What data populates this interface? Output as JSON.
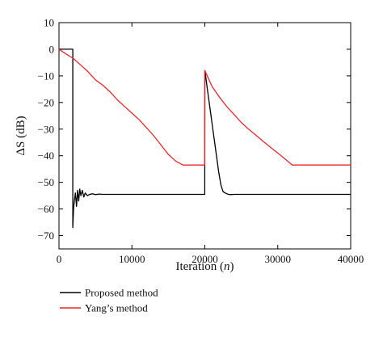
{
  "chart_data": {
    "type": "line",
    "title": "",
    "xlabel": "Iteration (n)",
    "xlabel_parts": {
      "text": "Iteration (",
      "var": "n",
      "close": ")"
    },
    "ylabel": "ΔS (dB)",
    "xlim": [
      0,
      40000
    ],
    "ylim": [
      -75,
      10
    ],
    "xticks": [
      0,
      10000,
      20000,
      30000,
      40000
    ],
    "yticks": [
      10,
      0,
      -10,
      -20,
      -30,
      -40,
      -50,
      -60,
      -70
    ],
    "grid": false,
    "legend_position": "bottom-left, below plot",
    "series": [
      {
        "name": "Proposed method",
        "color": "#000000",
        "x": [
          0,
          1900,
          1900,
          2000,
          2100,
          2250,
          2400,
          2550,
          2700,
          2850,
          3000,
          3200,
          3400,
          3600,
          3900,
          4200,
          4600,
          5000,
          5500,
          6000,
          7000,
          8000,
          10000,
          12000,
          14000,
          16000,
          18000,
          19990,
          20000,
          20010,
          20300,
          20700,
          21100,
          21500,
          21900,
          22200,
          22500,
          22800,
          23100,
          23400,
          24000,
          26000,
          30000,
          35000,
          40000
        ],
        "y": [
          0,
          0,
          -67,
          -60,
          -57,
          -54,
          -59,
          -53,
          -57,
          -52.5,
          -55,
          -53,
          -55.5,
          -54,
          -55,
          -54.5,
          -54.3,
          -54.6,
          -54.4,
          -54.5,
          -54.5,
          -54.5,
          -54.5,
          -54.5,
          -54.5,
          -54.5,
          -54.5,
          -54.5,
          -8,
          -8,
          -14,
          -22,
          -30,
          -38,
          -46,
          -51,
          -53.5,
          -54,
          -54.4,
          -54.6,
          -54.5,
          -54.5,
          -54.5,
          -54.5,
          -54.5
        ]
      },
      {
        "name": "Yang’s method",
        "color": "#e8262a",
        "x": [
          0,
          1000,
          2000,
          3000,
          4000,
          5000,
          6000,
          7000,
          8000,
          9000,
          10000,
          11000,
          12000,
          13000,
          14000,
          15000,
          16000,
          17000,
          18000,
          19000,
          19990,
          20000,
          20500,
          21000,
          22000,
          23000,
          24000,
          25000,
          26000,
          27000,
          28000,
          29000,
          30000,
          31000,
          32000,
          33000,
          34000,
          35000,
          36000,
          38000,
          40000
        ],
        "y": [
          0,
          -1.8,
          -3.5,
          -6,
          -8.5,
          -11.5,
          -13.5,
          -16,
          -19,
          -21.5,
          -24,
          -26.5,
          -29.5,
          -32.5,
          -36,
          -39.5,
          -42,
          -43.5,
          -43.5,
          -43.5,
          -43.5,
          -8,
          -11,
          -14,
          -18,
          -21.5,
          -24.5,
          -27.5,
          -30,
          -32.3,
          -34.6,
          -36.8,
          -39,
          -41.2,
          -43.5,
          -43.5,
          -43.5,
          -43.5,
          -43.5,
          -43.5,
          -43.5
        ]
      }
    ]
  }
}
